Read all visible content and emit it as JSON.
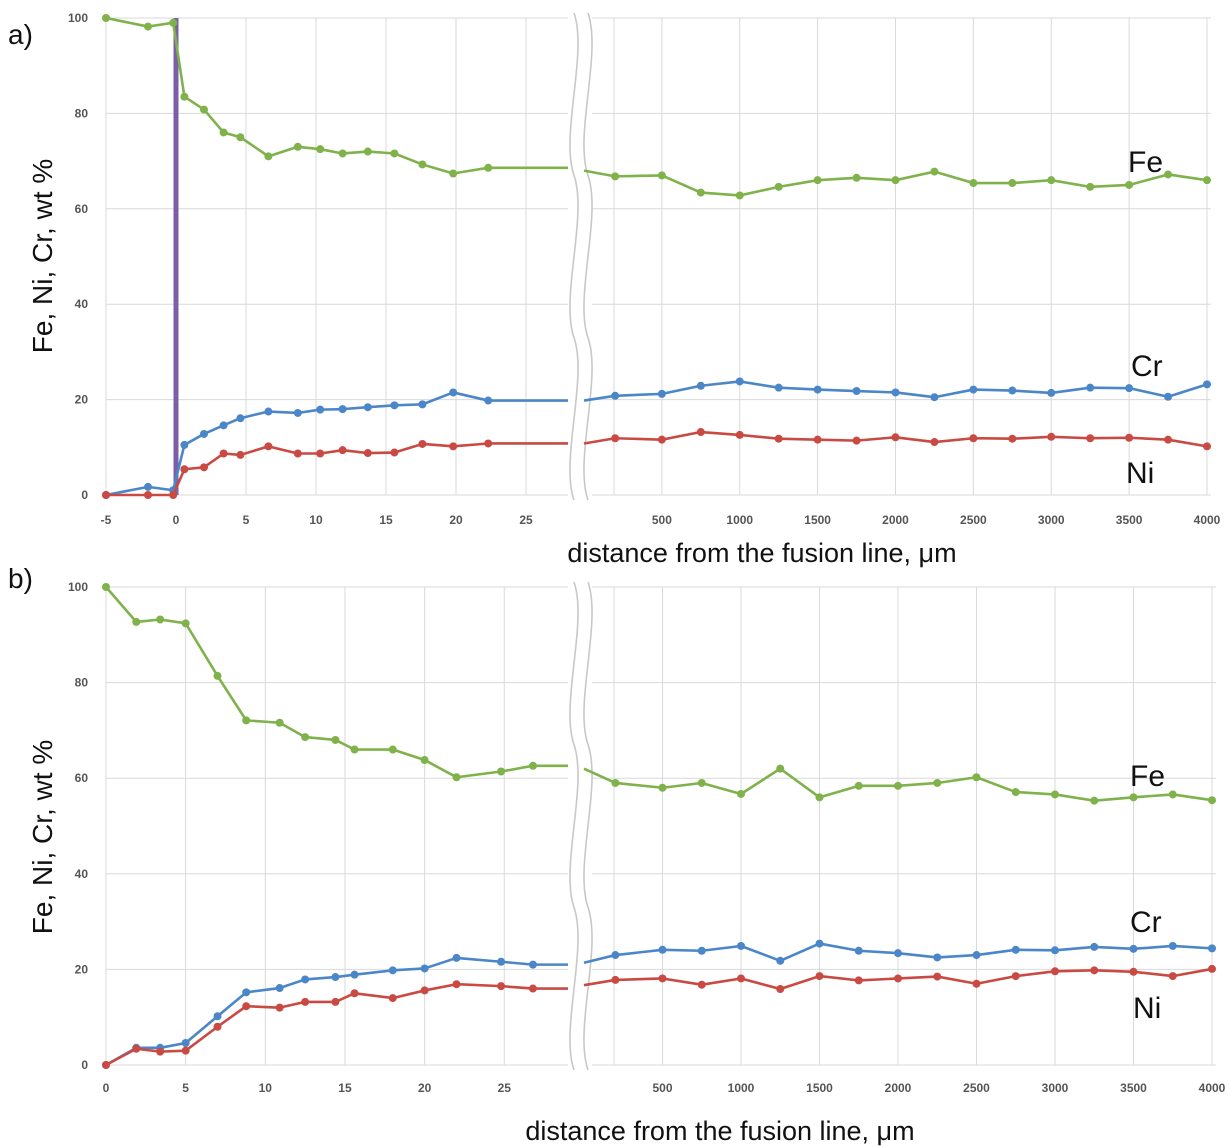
{
  "chart_data": [
    {
      "panel_label": "a)",
      "type": "line",
      "ylabel": "Fe, Ni, Cr, wt %",
      "xlabel": "distance from the fusion line, μm",
      "ylim": [
        0,
        100
      ],
      "yticks": [
        0,
        20,
        40,
        60,
        80,
        100
      ],
      "left_axis": {
        "xlim": [
          -5,
          28
        ],
        "xticks": [
          -5,
          0,
          5,
          10,
          15,
          20,
          25
        ]
      },
      "right_axis": {
        "xlim": [
          0,
          4000
        ],
        "xticks": [
          500,
          1000,
          1500,
          2000,
          2500,
          3000,
          3500,
          4000
        ]
      },
      "grid": true,
      "fusion_line_x": 0,
      "fusion_line_color": "#7b5ea7",
      "series": [
        {
          "name": "Fe",
          "color": "#7fb24a",
          "left": [
            [
              -5,
              100
            ],
            [
              -2,
              98.2
            ],
            [
              -0.2,
              99
            ],
            [
              0.6,
              83.5
            ],
            [
              2,
              80.8
            ],
            [
              3.4,
              76
            ],
            [
              4.6,
              75
            ],
            [
              6.6,
              71
            ],
            [
              8.7,
              73
            ],
            [
              10.3,
              72.5
            ],
            [
              11.9,
              71.6
            ],
            [
              13.7,
              72
            ],
            [
              15.6,
              71.6
            ],
            [
              17.6,
              69.3
            ],
            [
              19.8,
              67.4
            ],
            [
              22.3,
              68.6
            ],
            [
              28,
              68.6
            ]
          ],
          "right": [
            [
              0,
              68
            ],
            [
              200,
              66.8
            ],
            [
              500,
              67
            ],
            [
              750,
              63.4
            ],
            [
              1000,
              62.8
            ],
            [
              1250,
              64.6
            ],
            [
              1500,
              66
            ],
            [
              1750,
              66.5
            ],
            [
              2000,
              66
            ],
            [
              2250,
              67.8
            ],
            [
              2500,
              65.4
            ],
            [
              2750,
              65.4
            ],
            [
              3000,
              66
            ],
            [
              3250,
              64.6
            ],
            [
              3500,
              65
            ],
            [
              3750,
              67.2
            ],
            [
              4000,
              66
            ]
          ]
        },
        {
          "name": "Cr",
          "color": "#4a86c8",
          "left": [
            [
              -5,
              0
            ],
            [
              -2,
              1.7
            ],
            [
              -0.2,
              1
            ],
            [
              0.6,
              10.5
            ],
            [
              2,
              12.8
            ],
            [
              3.4,
              14.6
            ],
            [
              4.6,
              16.1
            ],
            [
              6.6,
              17.5
            ],
            [
              8.7,
              17.2
            ],
            [
              10.3,
              17.9
            ],
            [
              11.9,
              18
            ],
            [
              13.7,
              18.4
            ],
            [
              15.6,
              18.8
            ],
            [
              17.6,
              19
            ],
            [
              19.8,
              21.5
            ],
            [
              22.3,
              19.8
            ],
            [
              28,
              19.8
            ]
          ],
          "right": [
            [
              0,
              19.8
            ],
            [
              200,
              20.8
            ],
            [
              500,
              21.2
            ],
            [
              750,
              22.9
            ],
            [
              1000,
              23.8
            ],
            [
              1250,
              22.5
            ],
            [
              1500,
              22.1
            ],
            [
              1750,
              21.8
            ],
            [
              2000,
              21.5
            ],
            [
              2250,
              20.5
            ],
            [
              2500,
              22.1
            ],
            [
              2750,
              21.9
            ],
            [
              3000,
              21.4
            ],
            [
              3250,
              22.5
            ],
            [
              3500,
              22.4
            ],
            [
              3750,
              20.6
            ],
            [
              4000,
              23.2
            ]
          ]
        },
        {
          "name": "Ni",
          "color": "#c94a42",
          "left": [
            [
              -5,
              0
            ],
            [
              -2,
              0
            ],
            [
              -0.2,
              0
            ],
            [
              0.6,
              5.4
            ],
            [
              2,
              5.8
            ],
            [
              3.4,
              8.7
            ],
            [
              4.6,
              8.4
            ],
            [
              6.6,
              10.2
            ],
            [
              8.7,
              8.7
            ],
            [
              10.3,
              8.7
            ],
            [
              11.9,
              9.4
            ],
            [
              13.7,
              8.8
            ],
            [
              15.6,
              8.9
            ],
            [
              17.6,
              10.7
            ],
            [
              19.8,
              10.2
            ],
            [
              22.3,
              10.8
            ],
            [
              28,
              10.8
            ]
          ],
          "right": [
            [
              0,
              10.8
            ],
            [
              200,
              11.9
            ],
            [
              500,
              11.6
            ],
            [
              750,
              13.2
            ],
            [
              1000,
              12.6
            ],
            [
              1250,
              11.8
            ],
            [
              1500,
              11.6
            ],
            [
              1750,
              11.4
            ],
            [
              2000,
              12.1
            ],
            [
              2250,
              11.1
            ],
            [
              2500,
              11.9
            ],
            [
              2750,
              11.8
            ],
            [
              3000,
              12.2
            ],
            [
              3250,
              11.9
            ],
            [
              3500,
              12
            ],
            [
              3750,
              11.6
            ],
            [
              4000,
              10.2
            ]
          ]
        }
      ],
      "element_labels": [
        "Fe",
        "Cr",
        "Ni"
      ]
    },
    {
      "panel_label": "b)",
      "type": "line",
      "ylabel": "Fe, Ni, Cr, wt %",
      "xlabel": "distance from the fusion line, μm",
      "ylim": [
        0,
        100
      ],
      "yticks": [
        0,
        20,
        40,
        60,
        80,
        100
      ],
      "left_axis": {
        "xlim": [
          0,
          29
        ],
        "xticks": [
          0,
          5,
          10,
          15,
          20,
          25
        ]
      },
      "right_axis": {
        "xlim": [
          0,
          4000
        ],
        "xticks": [
          500,
          1000,
          1500,
          2000,
          2500,
          3000,
          3500,
          4000
        ]
      },
      "grid": true,
      "series": [
        {
          "name": "Fe",
          "color": "#7fb24a",
          "left": [
            [
              0,
              100
            ],
            [
              1.9,
              92.7
            ],
            [
              3.4,
              93.2
            ],
            [
              5,
              92.4
            ],
            [
              7,
              81.4
            ],
            [
              8.8,
              72.1
            ],
            [
              10.9,
              71.6
            ],
            [
              12.5,
              68.6
            ],
            [
              14.4,
              68
            ],
            [
              15.6,
              66
            ],
            [
              18,
              66
            ],
            [
              20,
              63.8
            ],
            [
              22,
              60.2
            ],
            [
              24.8,
              61.4
            ],
            [
              26.8,
              62.6
            ],
            [
              29,
              62.6
            ]
          ],
          "right": [
            [
              0,
              62
            ],
            [
              200,
              59
            ],
            [
              500,
              58
            ],
            [
              750,
              59
            ],
            [
              1000,
              56.7
            ],
            [
              1250,
              62
            ],
            [
              1500,
              56
            ],
            [
              1750,
              58.4
            ],
            [
              2000,
              58.4
            ],
            [
              2250,
              59
            ],
            [
              2500,
              60.2
            ],
            [
              2750,
              57.1
            ],
            [
              3000,
              56.6
            ],
            [
              3250,
              55.3
            ],
            [
              3500,
              56
            ],
            [
              3750,
              56.6
            ],
            [
              4000,
              55.4
            ]
          ]
        },
        {
          "name": "Cr",
          "color": "#4a86c8",
          "left": [
            [
              0,
              0
            ],
            [
              1.9,
              3.6
            ],
            [
              3.4,
              3.6
            ],
            [
              5,
              4.6
            ],
            [
              7,
              10.2
            ],
            [
              8.8,
              15.2
            ],
            [
              10.9,
              16.1
            ],
            [
              12.5,
              17.9
            ],
            [
              14.4,
              18.4
            ],
            [
              15.6,
              18.9
            ],
            [
              18,
              19.8
            ],
            [
              20,
              20.2
            ],
            [
              22,
              22.4
            ],
            [
              24.8,
              21.6
            ],
            [
              26.8,
              21
            ],
            [
              29,
              21
            ]
          ],
          "right": [
            [
              0,
              21.4
            ],
            [
              200,
              23
            ],
            [
              500,
              24.1
            ],
            [
              750,
              23.9
            ],
            [
              1000,
              24.9
            ],
            [
              1250,
              21.8
            ],
            [
              1500,
              25.4
            ],
            [
              1750,
              23.9
            ],
            [
              2000,
              23.4
            ],
            [
              2250,
              22.5
            ],
            [
              2500,
              23
            ],
            [
              2750,
              24.1
            ],
            [
              3000,
              24
            ],
            [
              3250,
              24.7
            ],
            [
              3500,
              24.3
            ],
            [
              3750,
              24.9
            ],
            [
              4000,
              24.4
            ]
          ]
        },
        {
          "name": "Ni",
          "color": "#c94a42",
          "left": [
            [
              0,
              0
            ],
            [
              1.9,
              3.4
            ],
            [
              3.4,
              2.8
            ],
            [
              5,
              3
            ],
            [
              7,
              8
            ],
            [
              8.8,
              12.3
            ],
            [
              10.9,
              12
            ],
            [
              12.5,
              13.2
            ],
            [
              14.4,
              13.2
            ],
            [
              15.6,
              15
            ],
            [
              18,
              14
            ],
            [
              20,
              15.6
            ],
            [
              22,
              16.9
            ],
            [
              24.8,
              16.5
            ],
            [
              26.8,
              16
            ],
            [
              29,
              16
            ]
          ],
          "right": [
            [
              0,
              16.7
            ],
            [
              200,
              17.8
            ],
            [
              500,
              18.1
            ],
            [
              750,
              16.8
            ],
            [
              1000,
              18.1
            ],
            [
              1250,
              15.9
            ],
            [
              1500,
              18.6
            ],
            [
              1750,
              17.7
            ],
            [
              2000,
              18.1
            ],
            [
              2250,
              18.5
            ],
            [
              2500,
              17
            ],
            [
              2750,
              18.6
            ],
            [
              3000,
              19.6
            ],
            [
              3250,
              19.8
            ],
            [
              3500,
              19.5
            ],
            [
              3750,
              18.6
            ],
            [
              4000,
              20.1
            ]
          ]
        }
      ],
      "element_labels": [
        "Fe",
        "Cr",
        "Ni"
      ]
    }
  ]
}
